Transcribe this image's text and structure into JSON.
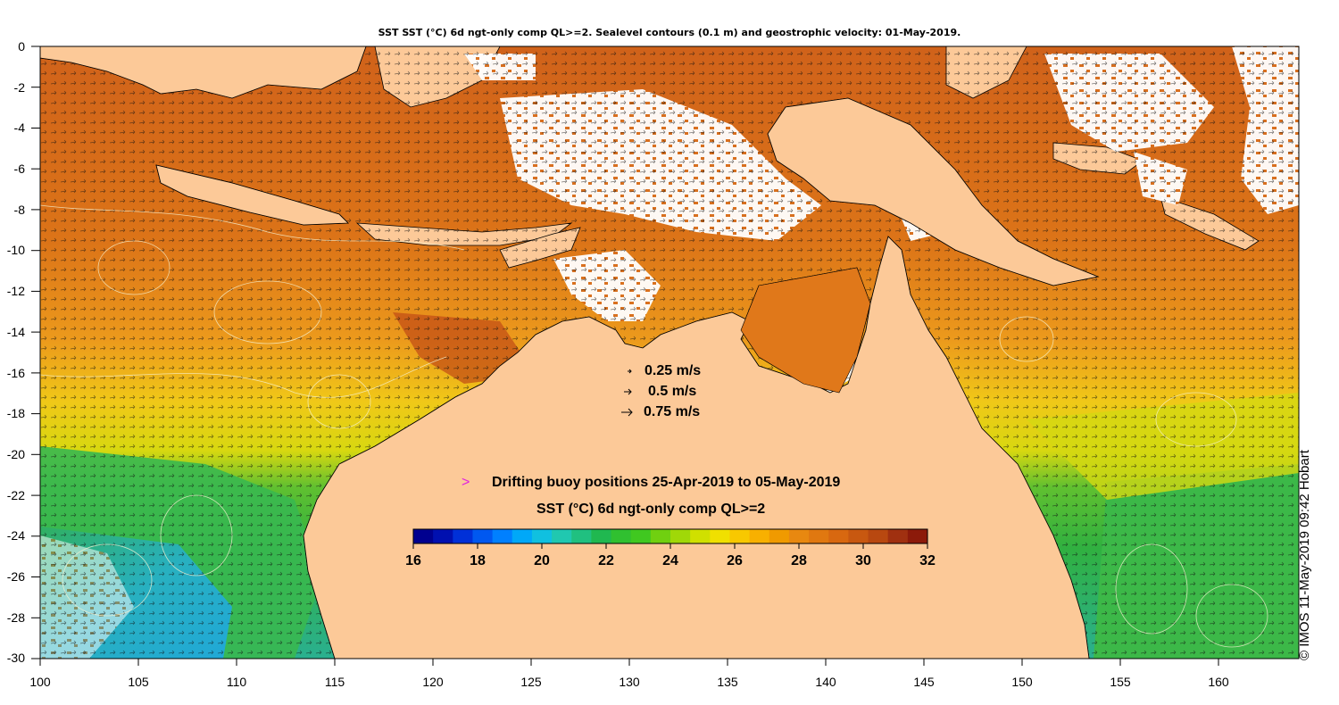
{
  "title": "SST SST (°C) 6d ngt-only comp QL>=2. Sealevel contours (0.1 m) and geostrophic velocity: 01-May-2019.",
  "y_ticks": [
    "0",
    "-2",
    "-4",
    "-6",
    "-8",
    "-10",
    "-12",
    "-14",
    "-16",
    "-18",
    "-20",
    "-22",
    "-24",
    "-26",
    "-28",
    "-30"
  ],
  "x_ticks": [
    "100",
    "105",
    "110",
    "115",
    "120",
    "125",
    "130",
    "135",
    "140",
    "145",
    "150",
    "155",
    "160"
  ],
  "velocity_legend": [
    "0.25 m/s",
    "0.5 m/s",
    "0.75 m/s"
  ],
  "buoy_label": "Drifting buoy positions 25-Apr-2019 to 05-May-2019",
  "buoy_marker": ">",
  "colorbar_title": "SST (°C) 6d ngt-only comp QL>=2",
  "colorbar_ticks": [
    "16",
    "18",
    "20",
    "22",
    "24",
    "26",
    "28",
    "30",
    "32"
  ],
  "credit": "© IMOS 11-May-2019 09:42 Hobart",
  "colors": {
    "land": "#fcc998",
    "cloud": "#ffffff",
    "warm": "#d9681a",
    "hot": "#bf4a14",
    "mid": "#ee9a1f",
    "yellow": "#e8e00e",
    "green": "#44bb33",
    "cyan": "#22aacc"
  },
  "colorbar_colors": [
    "#00008f",
    "#0010b0",
    "#0030d8",
    "#0058f0",
    "#0080ff",
    "#00a8f8",
    "#10c0e0",
    "#20c8b0",
    "#20c080",
    "#20b850",
    "#30c030",
    "#40c820",
    "#70d010",
    "#a0d808",
    "#d0e000",
    "#f0e000",
    "#f8c800",
    "#f8b000",
    "#f09a00",
    "#e88810",
    "#e07810",
    "#d86810",
    "#c85810",
    "#b84810",
    "#a03010",
    "#8c1a0a"
  ]
}
